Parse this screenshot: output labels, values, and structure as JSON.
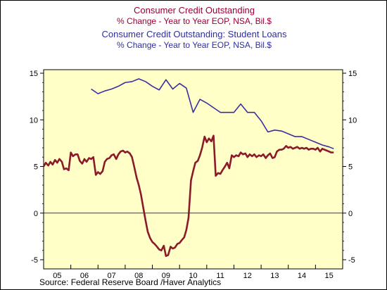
{
  "titles": {
    "line1": "Consumer Credit Outstanding",
    "line2": "% Change - Year to Year    EOP, NSA, Bil.$",
    "line3": "Consumer Credit Outstanding: Student Loans",
    "line4": "% Change - Year to Year    EOP, NSA, Bil.$"
  },
  "source": "Source:  Federal Reserve Board /Haver Analytics",
  "colors": {
    "plot_bg": "#ffffc7",
    "consumer_credit": "#8b1a2b",
    "student_loans": "#3b2fa0"
  },
  "chart_data": {
    "type": "line",
    "x_unit": "year",
    "xlim": [
      2005.0,
      2016.0
    ],
    "ylim": [
      -5,
      15
    ],
    "yticks": [
      15,
      10,
      5,
      0,
      -5
    ],
    "ytick_labels": [
      "15",
      "10",
      "5",
      "0",
      "-5"
    ],
    "xtick_labels": [
      "05",
      "06",
      "07",
      "08",
      "09",
      "10",
      "11",
      "12",
      "13",
      "14",
      "15"
    ],
    "zero_line": true,
    "legend": "none",
    "series": [
      {
        "name": "Consumer Credit Outstanding",
        "color_key": "consumer_credit",
        "points": [
          [
            2005.0,
            5.0
          ],
          [
            2005.08,
            5.4
          ],
          [
            2005.17,
            5.1
          ],
          [
            2005.25,
            5.5
          ],
          [
            2005.33,
            5.2
          ],
          [
            2005.42,
            5.7
          ],
          [
            2005.5,
            5.4
          ],
          [
            2005.58,
            5.8
          ],
          [
            2005.67,
            5.5
          ],
          [
            2005.75,
            4.7
          ],
          [
            2005.83,
            4.8
          ],
          [
            2005.92,
            4.6
          ],
          [
            2006.0,
            6.5
          ],
          [
            2006.08,
            6.1
          ],
          [
            2006.17,
            6.3
          ],
          [
            2006.25,
            6.3
          ],
          [
            2006.33,
            5.6
          ],
          [
            2006.42,
            5.3
          ],
          [
            2006.5,
            5.8
          ],
          [
            2006.58,
            5.5
          ],
          [
            2006.67,
            5.9
          ],
          [
            2006.75,
            5.8
          ],
          [
            2006.83,
            6.0
          ],
          [
            2006.92,
            4.1
          ],
          [
            2007.0,
            4.4
          ],
          [
            2007.08,
            4.2
          ],
          [
            2007.17,
            4.5
          ],
          [
            2007.25,
            5.5
          ],
          [
            2007.33,
            5.8
          ],
          [
            2007.42,
            5.9
          ],
          [
            2007.5,
            6.2
          ],
          [
            2007.58,
            6.3
          ],
          [
            2007.67,
            5.8
          ],
          [
            2007.75,
            6.3
          ],
          [
            2007.83,
            6.6
          ],
          [
            2007.92,
            6.7
          ],
          [
            2008.0,
            6.5
          ],
          [
            2008.08,
            6.6
          ],
          [
            2008.17,
            6.4
          ],
          [
            2008.25,
            6.0
          ],
          [
            2008.33,
            5.0
          ],
          [
            2008.42,
            3.8
          ],
          [
            2008.5,
            3.0
          ],
          [
            2008.58,
            2.0
          ],
          [
            2008.67,
            0.5
          ],
          [
            2008.75,
            -0.8
          ],
          [
            2008.83,
            -2.0
          ],
          [
            2008.92,
            -2.7
          ],
          [
            2009.0,
            -3.1
          ],
          [
            2009.08,
            -3.3
          ],
          [
            2009.17,
            -3.6
          ],
          [
            2009.25,
            -3.9
          ],
          [
            2009.33,
            -4.0
          ],
          [
            2009.42,
            -3.5
          ],
          [
            2009.5,
            -4.6
          ],
          [
            2009.58,
            -4.5
          ],
          [
            2009.67,
            -3.6
          ],
          [
            2009.75,
            -3.8
          ],
          [
            2009.83,
            -3.7
          ],
          [
            2009.92,
            -3.3
          ],
          [
            2010.0,
            -3.2
          ],
          [
            2010.08,
            -2.9
          ],
          [
            2010.17,
            -2.6
          ],
          [
            2010.25,
            -1.8
          ],
          [
            2010.33,
            -0.5
          ],
          [
            2010.42,
            3.5
          ],
          [
            2010.5,
            4.5
          ],
          [
            2010.58,
            5.4
          ],
          [
            2010.67,
            5.6
          ],
          [
            2010.75,
            6.2
          ],
          [
            2010.83,
            7.0
          ],
          [
            2010.92,
            8.2
          ],
          [
            2011.0,
            7.6
          ],
          [
            2011.08,
            8.0
          ],
          [
            2011.17,
            7.7
          ],
          [
            2011.25,
            8.3
          ],
          [
            2011.33,
            4.0
          ],
          [
            2011.42,
            4.3
          ],
          [
            2011.5,
            4.2
          ],
          [
            2011.58,
            4.6
          ],
          [
            2011.67,
            5.0
          ],
          [
            2011.75,
            5.4
          ],
          [
            2011.83,
            4.8
          ],
          [
            2011.92,
            6.2
          ],
          [
            2012.0,
            6.0
          ],
          [
            2012.08,
            6.2
          ],
          [
            2012.17,
            6.1
          ],
          [
            2012.25,
            6.5
          ],
          [
            2012.33,
            6.3
          ],
          [
            2012.42,
            6.4
          ],
          [
            2012.5,
            6.0
          ],
          [
            2012.58,
            6.3
          ],
          [
            2012.67,
            6.1
          ],
          [
            2012.75,
            6.3
          ],
          [
            2012.83,
            6.0
          ],
          [
            2012.92,
            6.2
          ],
          [
            2013.0,
            6.1
          ],
          [
            2013.08,
            6.3
          ],
          [
            2013.17,
            5.9
          ],
          [
            2013.25,
            6.2
          ],
          [
            2013.33,
            6.4
          ],
          [
            2013.42,
            5.9
          ],
          [
            2013.5,
            6.0
          ],
          [
            2013.58,
            6.6
          ],
          [
            2013.67,
            6.8
          ],
          [
            2013.75,
            6.8
          ],
          [
            2013.83,
            6.9
          ],
          [
            2013.92,
            7.2
          ],
          [
            2014.0,
            7.0
          ],
          [
            2014.08,
            7.1
          ],
          [
            2014.17,
            6.9
          ],
          [
            2014.25,
            7.0
          ],
          [
            2014.33,
            7.1
          ],
          [
            2014.42,
            6.9
          ],
          [
            2014.5,
            7.0
          ],
          [
            2014.58,
            6.9
          ],
          [
            2014.67,
            7.0
          ],
          [
            2014.75,
            6.8
          ],
          [
            2014.83,
            6.9
          ],
          [
            2014.92,
            6.9
          ],
          [
            2015.0,
            6.8
          ],
          [
            2015.08,
            7.0
          ],
          [
            2015.17,
            6.6
          ],
          [
            2015.25,
            6.9
          ],
          [
            2015.33,
            6.8
          ],
          [
            2015.42,
            6.7
          ],
          [
            2015.5,
            6.6
          ],
          [
            2015.58,
            6.5
          ],
          [
            2015.67,
            6.5
          ]
        ]
      },
      {
        "name": "Consumer Credit Outstanding: Student Loans",
        "color_key": "student_loans",
        "points": [
          [
            2006.75,
            13.3
          ],
          [
            2007.0,
            12.8
          ],
          [
            2007.25,
            13.1
          ],
          [
            2007.5,
            13.3
          ],
          [
            2007.75,
            13.6
          ],
          [
            2008.0,
            14.0
          ],
          [
            2008.25,
            14.1
          ],
          [
            2008.5,
            14.4
          ],
          [
            2008.75,
            14.1
          ],
          [
            2009.0,
            13.6
          ],
          [
            2009.25,
            13.2
          ],
          [
            2009.5,
            14.3
          ],
          [
            2009.75,
            13.3
          ],
          [
            2010.0,
            13.9
          ],
          [
            2010.25,
            13.4
          ],
          [
            2010.5,
            10.8
          ],
          [
            2010.75,
            12.2
          ],
          [
            2011.0,
            11.8
          ],
          [
            2011.25,
            11.3
          ],
          [
            2011.5,
            10.8
          ],
          [
            2011.75,
            10.8
          ],
          [
            2012.0,
            10.8
          ],
          [
            2012.25,
            11.7
          ],
          [
            2012.5,
            10.8
          ],
          [
            2012.75,
            10.8
          ],
          [
            2013.0,
            9.9
          ],
          [
            2013.25,
            8.7
          ],
          [
            2013.5,
            8.9
          ],
          [
            2013.75,
            8.8
          ],
          [
            2014.0,
            8.5
          ],
          [
            2014.25,
            8.2
          ],
          [
            2014.5,
            8.2
          ],
          [
            2014.75,
            7.9
          ],
          [
            2015.0,
            7.6
          ],
          [
            2015.25,
            7.3
          ],
          [
            2015.5,
            7.1
          ],
          [
            2015.67,
            6.9
          ]
        ]
      }
    ]
  }
}
